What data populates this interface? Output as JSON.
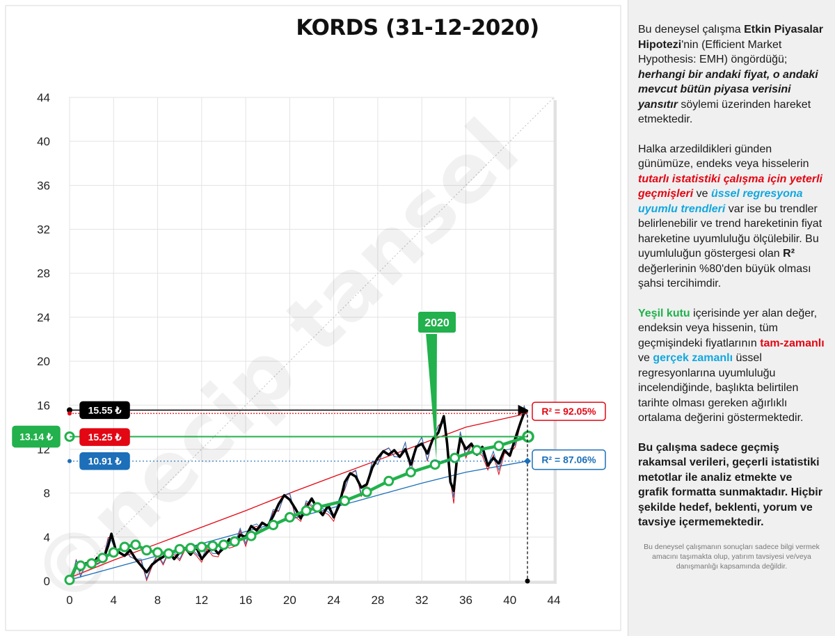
{
  "chart_data": {
    "type": "line",
    "title": "KORDS (31-12-2020)",
    "xlim": [
      0,
      44
    ],
    "ylim": [
      0,
      44
    ],
    "x_ticks": [
      "0",
      "4",
      "8",
      "12",
      "16",
      "20",
      "24",
      "28",
      "32",
      "36",
      "40",
      "44"
    ],
    "y_ticks": [
      "0",
      "4",
      "8",
      "12",
      "16",
      "20",
      "24",
      "28",
      "32",
      "36",
      "40",
      "44"
    ],
    "grid": true,
    "price_labels": {
      "black": "15.55 ₺",
      "red": "15.25 ₺",
      "green": "13.14 ₺",
      "blue": "10.91 ₺"
    },
    "price_values": {
      "black": 15.55,
      "red": 15.25,
      "green": 13.14,
      "blue": 10.91
    },
    "r2_labels": {
      "red": "R² = 92.05%",
      "blue": "R² = 87.06%"
    },
    "callout": {
      "label": "2020",
      "x": 33.2,
      "y": 10.6
    },
    "series": [
      {
        "key": "price",
        "color": "#000000",
        "points": [
          [
            0,
            0.1
          ],
          [
            0.3,
            0.6
          ],
          [
            0.6,
            1.3
          ],
          [
            1,
            1.0
          ],
          [
            1.5,
            1.6
          ],
          [
            2,
            1.3
          ],
          [
            2.5,
            2.1
          ],
          [
            3,
            1.8
          ],
          [
            3.5,
            3.2
          ],
          [
            3.8,
            4.3
          ],
          [
            4.2,
            2.8
          ],
          [
            5,
            2.3
          ],
          [
            5.5,
            2.8
          ],
          [
            6,
            2.0
          ],
          [
            6.5,
            1.4
          ],
          [
            7,
            0.8
          ],
          [
            7.5,
            1.5
          ],
          [
            8,
            1.9
          ],
          [
            8.5,
            2.2
          ],
          [
            9,
            2.7
          ],
          [
            9.5,
            2.0
          ],
          [
            10,
            2.6
          ],
          [
            10.5,
            3.0
          ],
          [
            11,
            2.4
          ],
          [
            11.5,
            3.1
          ],
          [
            12,
            2.0
          ],
          [
            12.5,
            2.6
          ],
          [
            13,
            3.1
          ],
          [
            13.5,
            2.5
          ],
          [
            14,
            3.0
          ],
          [
            14.5,
            3.8
          ],
          [
            15,
            3.4
          ],
          [
            15.5,
            4.2
          ],
          [
            16,
            4.0
          ],
          [
            16.5,
            5.0
          ],
          [
            17,
            4.6
          ],
          [
            17.5,
            5.3
          ],
          [
            18,
            5.0
          ],
          [
            18.5,
            5.9
          ],
          [
            19,
            7.0
          ],
          [
            19.5,
            7.8
          ],
          [
            20,
            7.4
          ],
          [
            20.5,
            6.6
          ],
          [
            21,
            5.7
          ],
          [
            21.5,
            6.7
          ],
          [
            22,
            7.5
          ],
          [
            22.5,
            6.6
          ],
          [
            23,
            6.0
          ],
          [
            23.5,
            6.9
          ],
          [
            24,
            5.8
          ],
          [
            24.5,
            6.9
          ],
          [
            25,
            9.0
          ],
          [
            25.5,
            9.8
          ],
          [
            26,
            9.5
          ],
          [
            26.5,
            8.5
          ],
          [
            27,
            8.8
          ],
          [
            27.5,
            10.3
          ],
          [
            28,
            11.2
          ],
          [
            28.5,
            11.8
          ],
          [
            29,
            11.5
          ],
          [
            29.5,
            11.9
          ],
          [
            30,
            11.3
          ],
          [
            30.5,
            12.0
          ],
          [
            31,
            10.6
          ],
          [
            31.5,
            12.2
          ],
          [
            32,
            12.5
          ],
          [
            32.5,
            11.6
          ],
          [
            33,
            12.9
          ],
          [
            33.5,
            13.5
          ],
          [
            34,
            15.0
          ],
          [
            34.3,
            12.5
          ],
          [
            34.6,
            9.0
          ],
          [
            34.9,
            8.2
          ],
          [
            35.2,
            11.2
          ],
          [
            35.5,
            13.0
          ],
          [
            36,
            12.0
          ],
          [
            36.5,
            12.5
          ],
          [
            37,
            11.5
          ],
          [
            37.5,
            12.2
          ],
          [
            38,
            10.5
          ],
          [
            38.5,
            11.2
          ],
          [
            39,
            10.7
          ],
          [
            39.5,
            11.9
          ],
          [
            40,
            11.4
          ],
          [
            40.5,
            13.0
          ],
          [
            41,
            14.5
          ],
          [
            41.3,
            15.3
          ],
          [
            41.6,
            15.55
          ]
        ]
      },
      {
        "key": "full_period_regression",
        "color": "#e30613",
        "points": [
          [
            0,
            0.3
          ],
          [
            4,
            1.9
          ],
          [
            8,
            3.4
          ],
          [
            12,
            4.9
          ],
          [
            16,
            6.4
          ],
          [
            20,
            8.0
          ],
          [
            24,
            9.5
          ],
          [
            28,
            11.0
          ],
          [
            32,
            12.5
          ],
          [
            36,
            14.0
          ],
          [
            41.6,
            15.25
          ]
        ]
      },
      {
        "key": "real_time_regression",
        "color": "#1c6fb8",
        "points": [
          [
            0,
            0.1
          ],
          [
            4,
            1.2
          ],
          [
            8,
            2.3
          ],
          [
            12,
            3.4
          ],
          [
            16,
            4.5
          ],
          [
            20,
            5.6
          ],
          [
            24,
            6.7
          ],
          [
            28,
            7.8
          ],
          [
            32,
            8.9
          ],
          [
            36,
            9.9
          ],
          [
            41.6,
            10.91
          ]
        ]
      },
      {
        "key": "weighted_average",
        "color": "#22b14c",
        "points": [
          [
            0,
            0.1
          ],
          [
            0.3,
            0.7
          ],
          [
            0.6,
            1.4
          ],
          [
            1,
            1.4
          ],
          [
            2,
            1.6
          ],
          [
            3,
            2.1
          ],
          [
            4,
            2.6
          ],
          [
            5,
            3.1
          ],
          [
            6,
            3.3
          ],
          [
            7,
            2.8
          ],
          [
            8,
            2.6
          ],
          [
            9,
            2.5
          ],
          [
            10,
            2.9
          ],
          [
            11,
            3.0
          ],
          [
            12,
            3.1
          ],
          [
            13,
            3.2
          ],
          [
            14,
            3.3
          ],
          [
            15,
            3.6
          ],
          [
            16.5,
            4.1
          ],
          [
            18.5,
            5.1
          ],
          [
            20,
            5.8
          ],
          [
            21.5,
            6.4
          ],
          [
            22.5,
            6.7
          ],
          [
            25,
            7.3
          ],
          [
            27,
            8.1
          ],
          [
            29,
            9.1
          ],
          [
            31,
            9.9
          ],
          [
            33.2,
            10.6
          ],
          [
            35,
            11.2
          ],
          [
            37,
            11.9
          ],
          [
            39,
            12.3
          ],
          [
            41.6,
            13.14
          ]
        ]
      }
    ]
  },
  "sidebar": {
    "p1_a": "Bu deneysel çalışma ",
    "p1_b": "Etkin Piyasalar Hipotezi",
    "p1_c": "'nin (Efficient Market Hypothesis: EMH) öngördüğü; ",
    "p1_d": "herhangi bir andaki fiyat, o andaki mevcut bütün piyasa verisini yansıtır",
    "p1_e": "  söylemi üzerinden hareket etmektedir.",
    "p2_a": "Halka arzedildikleri günden günümüze, endeks veya hisselerin ",
    "p2_b": "tutarlı istatistiki çalışma için yeterli geçmişleri",
    "p2_c": " ve ",
    "p2_d": "üssel regresyona uyumlu trendleri",
    "p2_e": " var ise bu trendler belirlenebilir  ve trend hareketinin fiyat hareketine uyumluluğu ölçülebilir.  Bu uyumluluğun göstergesi olan ",
    "p2_f": "R²",
    "p2_g": " değerlerinin %80'den büyük olması şahsi tercihimdir.",
    "p3_a": "Yeşil kutu",
    "p3_b": " içerisinde yer alan değer, endeksin veya hissenin, tüm geçmişindeki fiyatlarının ",
    "p3_c": "tam-zamanlı",
    "p3_d": " ve ",
    "p3_e": "gerçek zamanlı",
    "p3_f": " üssel regresyonlarına uyumluluğu incelendiğinde, başlıkta belirtilen tarihte olması gereken ağırlıklı ortalama değerini göstermektedir.",
    "p4": "Bu çalışma sadece geçmiş rakamsal verileri, geçerli istatistiki metotlar ile  analiz etmekte ve grafik formatta sunmaktadır. Hiçbir şekilde hedef, beklenti, yorum ve tavsiye içermemektedir.",
    "disclaimer": "Bu deneysel çalışmanın sonuçları sadece bilgi vermek amacını taşımakta olup, yatırım tavsiyesi ve/veya danışmanlığı kapsamında değildir."
  },
  "watermark": "©necip tansel",
  "colors": {
    "black": "#000000",
    "red": "#e30613",
    "green": "#22b14c",
    "blue": "#1c6fb8",
    "sky": "#12a7df"
  }
}
